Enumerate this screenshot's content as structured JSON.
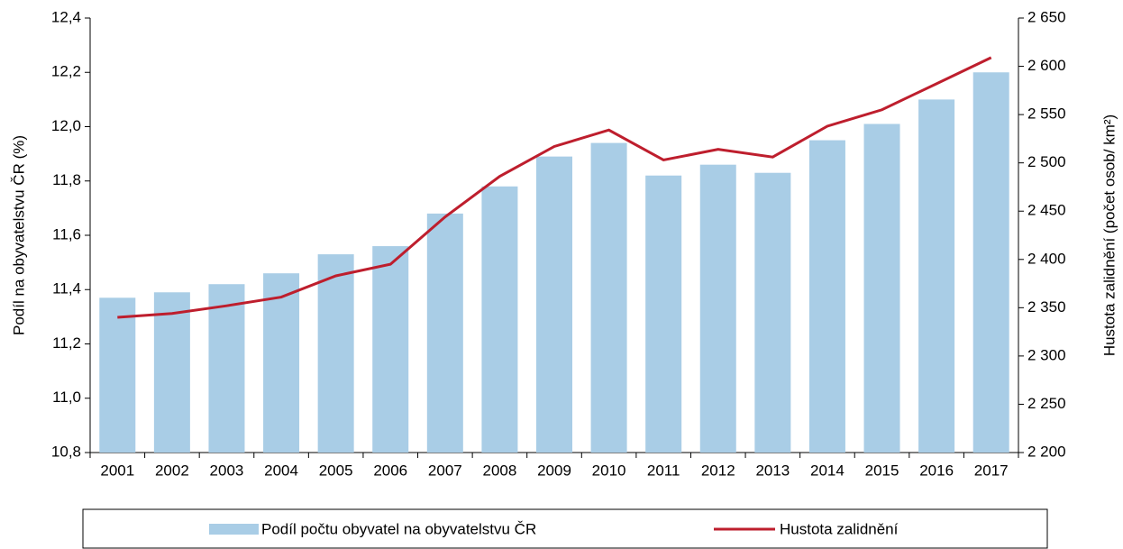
{
  "chart_data": {
    "type": "bar",
    "y_label": "Podíl na obyvatelstvu ČR (%)",
    "y2_label": "Hustota zalidnění (počet osob/ km²)",
    "categories": [
      "2001",
      "2002",
      "2003",
      "2004",
      "2005",
      "2006",
      "2007",
      "2008",
      "2009",
      "2010",
      "2011",
      "2012",
      "2013",
      "2014",
      "2015",
      "2016",
      "2017"
    ],
    "series": [
      {
        "name": "Podíl počtu obyvatel na obyvatelstvu ČR",
        "type": "bar",
        "color": "#a9cde6",
        "values": [
          11.37,
          11.39,
          11.42,
          11.46,
          11.53,
          11.56,
          11.68,
          11.78,
          11.89,
          11.94,
          11.82,
          11.86,
          11.83,
          11.95,
          12.01,
          12.1,
          12.2
        ]
      },
      {
        "name": "Hustota zalidnění",
        "type": "line",
        "axis": "y2",
        "color": "#be1e2d",
        "values": [
          2340,
          2344,
          2352,
          2361,
          2383,
          2395,
          2444,
          2486,
          2517,
          2534,
          2503,
          2514,
          2506,
          2538,
          2555,
          2582,
          2609
        ]
      }
    ],
    "ylim": [
      10.8,
      12.4
    ],
    "yticks": [
      {
        "value": 10.8,
        "label": "10,8"
      },
      {
        "value": 11.0,
        "label": "11,0"
      },
      {
        "value": 11.2,
        "label": "11,2"
      },
      {
        "value": 11.4,
        "label": "11,4"
      },
      {
        "value": 11.6,
        "label": "11,6"
      },
      {
        "value": 11.8,
        "label": "11,8"
      },
      {
        "value": 12.0,
        "label": "12,0"
      },
      {
        "value": 12.2,
        "label": "12,2"
      },
      {
        "value": 12.4,
        "label": "12,4"
      }
    ],
    "y2lim": [
      2200,
      2650
    ],
    "y2ticks": [
      {
        "value": 2200,
        "label": "2 200"
      },
      {
        "value": 2250,
        "label": "2 250"
      },
      {
        "value": 2300,
        "label": "2 300"
      },
      {
        "value": 2350,
        "label": "2 350"
      },
      {
        "value": 2400,
        "label": "2 400"
      },
      {
        "value": 2450,
        "label": "2 450"
      },
      {
        "value": 2500,
        "label": "2 500"
      },
      {
        "value": 2550,
        "label": "2 550"
      },
      {
        "value": 2600,
        "label": "2 600"
      },
      {
        "value": 2650,
        "label": "2 650"
      }
    ],
    "grid": false
  }
}
